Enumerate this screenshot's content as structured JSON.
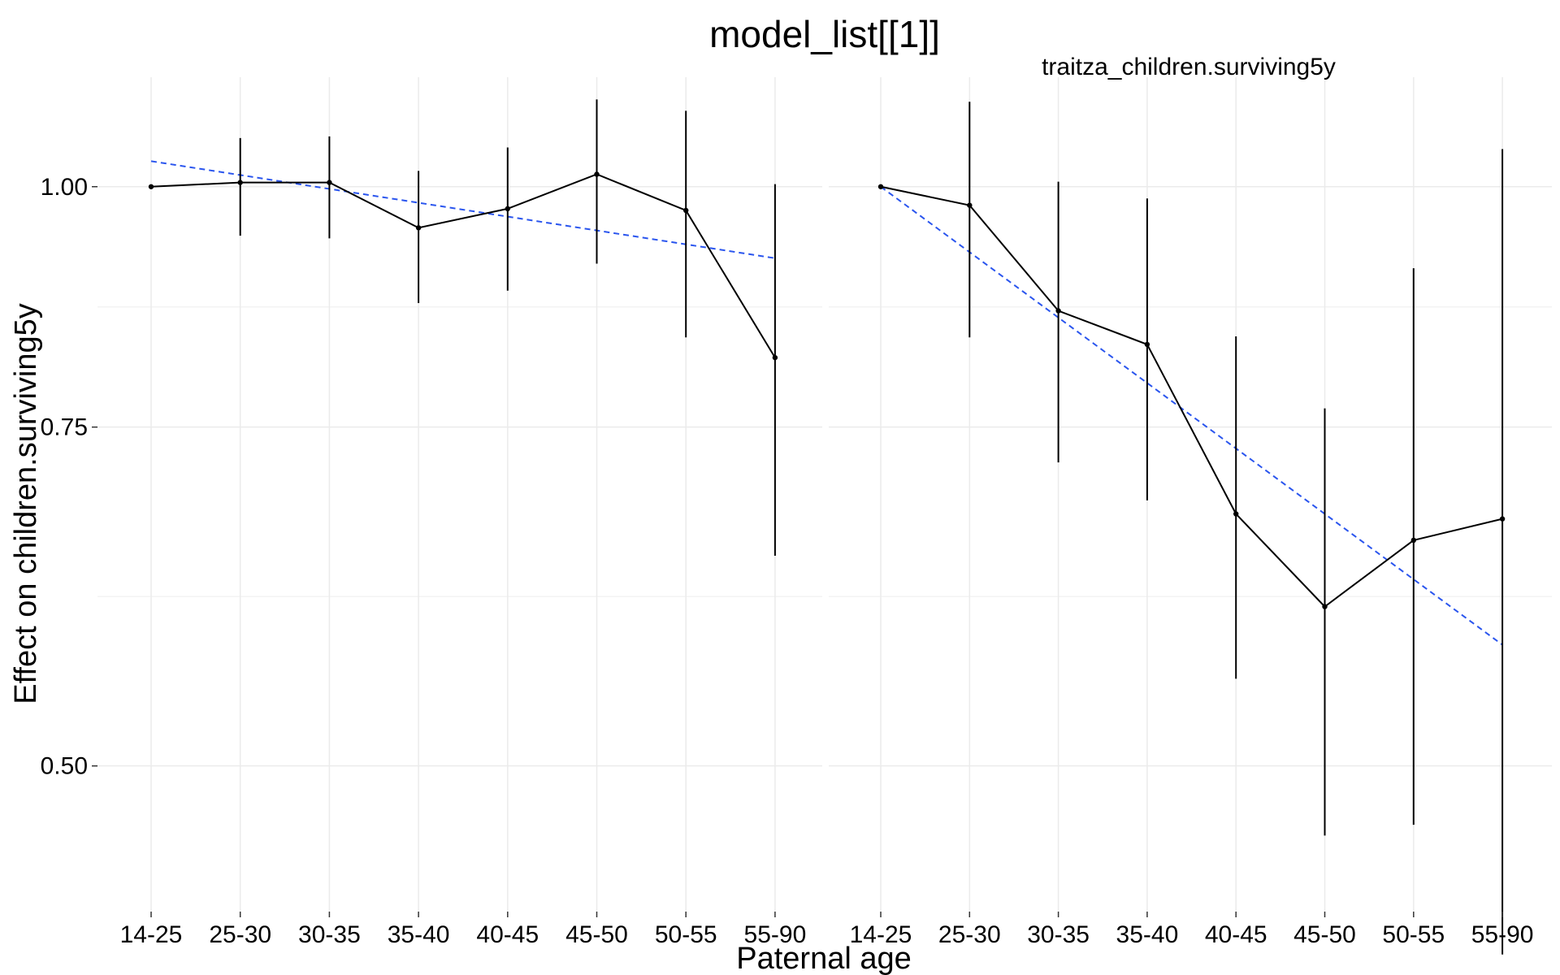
{
  "chart_data": {
    "type": "line",
    "title": "model_list[[1]]",
    "xlabel": "Paternal age",
    "ylabel": "Effect on children.surviving5y",
    "y_scale": "log",
    "ylim": [
      0.42,
      1.14
    ],
    "y_ticks": [
      0.5,
      0.75,
      1.0
    ],
    "y_tick_labels": [
      "0.50",
      "0.75",
      "1.00"
    ],
    "grid": true,
    "categories": [
      "14-25",
      "25-30",
      "30-35",
      "35-40",
      "40-45",
      "45-50",
      "50-55",
      "55-90"
    ],
    "panels": [
      {
        "facet_label": "",
        "series": [
          {
            "estimate": [
              1.0,
              1.005,
              1.005,
              0.952,
              0.974,
              1.015,
              0.972,
              0.815
            ],
            "lower": [
              1.0,
              0.943,
              0.94,
              0.87,
              0.883,
              0.912,
              0.835,
              0.643
            ],
            "upper": [
              1.0,
              1.06,
              1.062,
              1.019,
              1.048,
              1.11,
              1.095,
              1.003
            ],
            "trend": [
              1.031,
              0.918
            ]
          }
        ]
      },
      {
        "facet_label": "traitza_children.surviving5y",
        "series": [
          {
            "estimate": [
              1.0,
              0.978,
              0.862,
              0.828,
              0.676,
              0.605,
              0.655,
              0.672
            ],
            "lower": [
              1.0,
              0.835,
              0.719,
              0.687,
              0.555,
              0.46,
              0.466,
              0.399
            ],
            "upper": [
              1.0,
              1.107,
              1.006,
              0.986,
              0.836,
              0.767,
              0.907,
              1.046
            ],
            "trend": [
              1.0,
              0.578
            ]
          }
        ]
      }
    ]
  }
}
